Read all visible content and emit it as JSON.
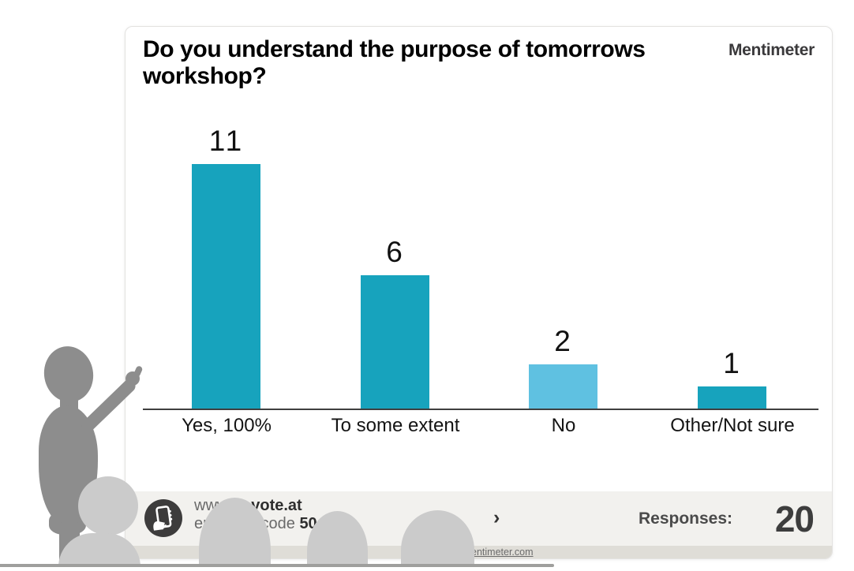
{
  "slide": {
    "title": "Do you understand the purpose of tomorrows workshop?",
    "brand": "Mentimeter"
  },
  "chart_data": {
    "type": "bar",
    "title": "Do you understand the purpose of tomorrows workshop?",
    "categories": [
      "Yes, 100%",
      "To some extent",
      "No",
      "Other/Not sure"
    ],
    "values": [
      11,
      6,
      2,
      1
    ],
    "value_labels": [
      "11",
      "6",
      "2",
      "1"
    ],
    "bar_colors": [
      "#17a3bd",
      "#17a3bd",
      "#5fc1e1",
      "#17a3bd"
    ],
    "xlabel": "",
    "ylabel": "",
    "ylim": [
      0,
      11.7
    ],
    "grid": false,
    "legend": false,
    "baseline_color": "#3f3f3f"
  },
  "footer": {
    "url_prefix": "www.",
    "url_bold": "govote.at",
    "code_prefix": "enter the code",
    "code_value": "50",
    "chevron": "›",
    "responses_label": "Responses:",
    "responses_value": "20",
    "link_text": "entimeter.com"
  },
  "icons": {
    "vote_icon": "phone-in-hand-icon"
  },
  "colors": {
    "bar_teal": "#17a3bd",
    "bar_light_blue": "#5fc1e1",
    "footer_bg": "#f2f1ee",
    "strip_bg": "#dfddd7",
    "icon_circle": "#3d3c3c",
    "presenter_gray": "#8d8d8d",
    "audience_gray": "#cbcbcb",
    "floor_line": "#9f9f9d",
    "brand_text": "#3a393b"
  }
}
